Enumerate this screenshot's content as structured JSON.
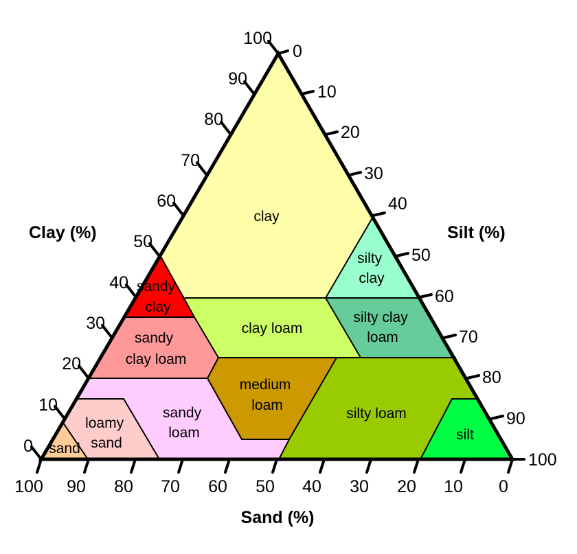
{
  "axes": {
    "clay_title": "Clay (%)",
    "silt_title": "Silt (%)",
    "sand_title": "Sand (%)"
  },
  "ticks": {
    "clay": [
      "0",
      "10",
      "20",
      "30",
      "40",
      "50",
      "60",
      "70",
      "80",
      "90",
      "100"
    ],
    "silt": [
      "0",
      "10",
      "20",
      "30",
      "40",
      "50",
      "60",
      "70",
      "80",
      "90",
      "100"
    ],
    "sand": [
      "100",
      "90",
      "80",
      "70",
      "60",
      "50",
      "40",
      "30",
      "20",
      "10",
      "0"
    ]
  },
  "regions": [
    {
      "id": "clay",
      "lines": [
        "clay"
      ],
      "color": "#ffffaa",
      "vertices": [
        [
          50,
          50
        ],
        [
          100,
          0
        ],
        [
          40,
          40
        ],
        [
          20,
          20
        ],
        [
          20,
          40
        ],
        [
          45,
          10
        ],
        [
          47.5,
          7.5
        ]
      ]
    },
    {
      "id": "silty-clay",
      "lines": [
        "silty",
        "clay"
      ],
      "color": "#99ffcc",
      "vertices": [
        [
          20,
          40
        ],
        [
          40,
          40
        ],
        [
          40,
          60
        ]
      ]
    },
    {
      "id": "sandy-clay",
      "lines": [
        "sandy",
        "clay"
      ],
      "color": "#ff0000",
      "vertices": [
        [
          45,
          10
        ],
        [
          47.5,
          7.5
        ],
        [
          27.5,
          27.5
        ],
        [
          30,
          25
        ]
      ]
    },
    {
      "id": "clay-loam",
      "lines": [
        "clay loam"
      ],
      "color": "#ccff66",
      "vertices": [
        [
          20,
          20
        ],
        [
          20,
          40
        ],
        [
          27.5,
          27.5
        ],
        [
          15,
          25
        ],
        [
          15,
          50
        ]
      ]
    },
    {
      "id": "silty-clay-loam",
      "lines": [
        "silty clay",
        "loam"
      ],
      "color": "#66cc99",
      "vertices": [
        [
          20,
          40
        ],
        [
          40,
          60
        ],
        [
          15,
          50
        ],
        [
          15,
          85
        ]
      ]
    },
    {
      "id": "sandy-clay-loam",
      "lines": [
        "sandy",
        "clay loam"
      ],
      "color": "#ff9999",
      "vertices": [
        [
          27.5,
          27.5
        ],
        [
          30,
          25
        ],
        [
          15,
          10
        ],
        [
          15,
          25
        ],
        [
          10,
          10
        ],
        [
          10,
          15
        ]
      ]
    },
    {
      "id": "medium-loam",
      "lines": [
        "medium",
        "loam"
      ],
      "color": "#cc9900",
      "vertices": [
        [
          15,
          50
        ],
        [
          15,
          25
        ],
        [
          10,
          15
        ],
        [
          0,
          20
        ],
        [
          5,
          30
        ],
        [
          5,
          45
        ]
      ]
    },
    {
      "id": "silty-loam",
      "lines": [
        "silty loam"
      ],
      "color": "#99cc00",
      "vertices": [
        [
          15,
          85
        ],
        [
          15,
          50
        ],
        [
          5,
          45
        ],
        [
          5,
          30
        ],
        [
          0,
          20
        ],
        [
          0,
          50
        ],
        [
          0,
          55
        ],
        [
          0,
          80
        ],
        [
          10,
          80
        ]
      ]
    },
    {
      "id": "silt",
      "lines": [
        "silt"
      ],
      "color": "#00ff44",
      "vertices": [
        [
          10,
          80
        ],
        [
          0,
          80
        ],
        [
          0,
          100
        ],
        [
          10,
          90
        ]
      ]
    },
    {
      "id": "sandy-loam",
      "lines": [
        "sandy",
        "loam"
      ],
      "color": "#ffccff",
      "vertices": [
        [
          15,
          10
        ],
        [
          10,
          15
        ],
        [
          0,
          20
        ],
        [
          0,
          25
        ],
        [
          0,
          50
        ],
        [
          10,
          10
        ],
        [
          10,
          0
        ],
        [
          5,
          0
        ],
        [
          5,
          30
        ],
        [
          0,
          25
        ],
        [
          0,
          20
        ]
      ]
    },
    {
      "id": "loamy-sand",
      "lines": [
        "loamy",
        "sand"
      ],
      "color": "#ffcccc",
      "vertices": [
        [
          10,
          0
        ],
        [
          10,
          10
        ],
        [
          5,
          0
        ],
        [
          0,
          15
        ],
        [
          0,
          10
        ],
        [
          5,
          20
        ],
        [
          5,
          30
        ]
      ]
    },
    {
      "id": "sand",
      "lines": [
        "sand"
      ],
      "color": "#ffcc99",
      "vertices": [
        [
          0,
          0
        ],
        [
          5,
          0
        ],
        [
          0,
          10
        ]
      ]
    }
  ]
}
